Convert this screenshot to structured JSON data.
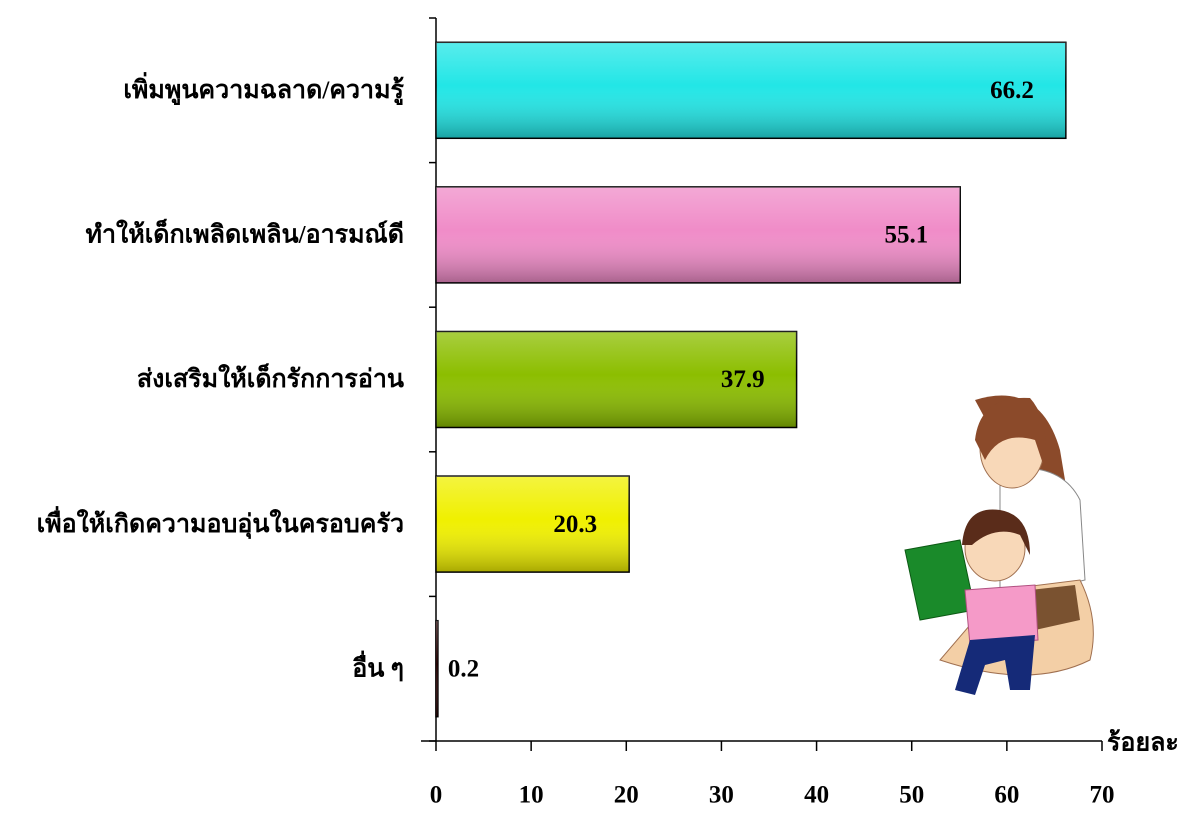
{
  "chart_data": {
    "type": "bar",
    "orientation": "horizontal",
    "categories": [
      "เพิ่มพูนความฉลาด/ความรู้",
      "ทำให้เด็กเพลิดเพลิน/อารมณ์ดี",
      "ส่งเสริมให้เด็กรักการอ่าน",
      "เพื่อให้เกิดความอบอุ่นในครอบครัว",
      "อื่น ๆ"
    ],
    "values": [
      66.2,
      55.1,
      37.9,
      20.3,
      0.2
    ],
    "colors": [
      "#22e6e6",
      "#f08cc8",
      "#8cbe00",
      "#f0f000",
      "#a01010"
    ],
    "xlim": [
      0,
      70
    ],
    "xticks": [
      0,
      10,
      20,
      30,
      40,
      50,
      60,
      70
    ],
    "x_label": "ร้อยละ",
    "grid": false
  }
}
